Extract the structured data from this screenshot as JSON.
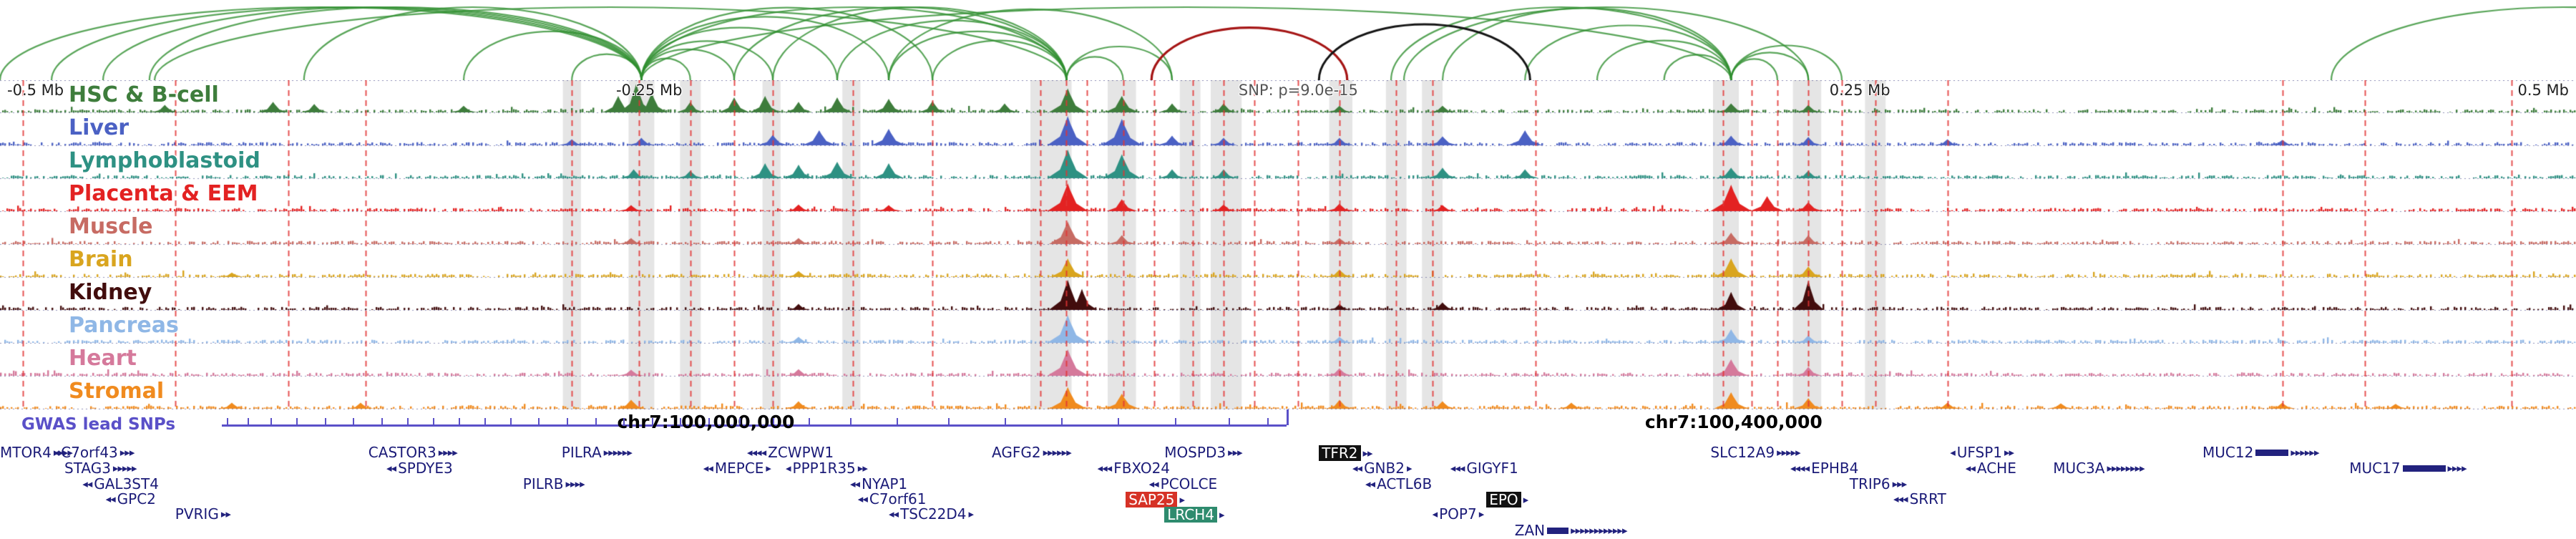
{
  "chart_data": {
    "type": "genome-browser-tracks",
    "x_axis": {
      "labels": [
        {
          "text": "-0.5 Mb",
          "x": 0.004
        },
        {
          "text": "-0.25 Mb",
          "x": 0.252
        },
        {
          "text": "SNP: p=9.0e-15",
          "x": 0.504
        },
        {
          "text": "0.25 Mb",
          "x": 0.722
        },
        {
          "text": "0.5 Mb",
          "x": 0.996
        }
      ]
    },
    "coordinates": [
      {
        "text": "chr7:100,000,000",
        "x": 0.274
      },
      {
        "text": "chr7:100,400,000",
        "x": 0.673
      }
    ],
    "gwas": {
      "label": "GWAS lead SNPs",
      "color": "#5a50c8",
      "line_start": 0.086,
      "line_end": 0.4995,
      "ticks": [
        0.088,
        0.096,
        0.105,
        0.115,
        0.126,
        0.137,
        0.148,
        0.158,
        0.168,
        0.178,
        0.188,
        0.198,
        0.209,
        0.22,
        0.231,
        0.242,
        0.253,
        0.264,
        0.275,
        0.287,
        0.3,
        0.314,
        0.33,
        0.348,
        0.368,
        0.39,
        0.412,
        0.434,
        0.456,
        0.477,
        0.492
      ]
    },
    "arcs": {
      "green": [
        [
          0.0,
          0.249
        ],
        [
          0.02,
          0.249
        ],
        [
          0.04,
          0.249
        ],
        [
          0.058,
          0.249
        ],
        [
          0.118,
          0.249
        ],
        [
          0.18,
          0.249
        ],
        [
          0.222,
          0.249
        ],
        [
          0.249,
          0.268
        ],
        [
          0.249,
          0.285
        ],
        [
          0.249,
          0.3
        ],
        [
          0.249,
          0.325
        ],
        [
          0.249,
          0.345
        ],
        [
          0.249,
          0.362
        ],
        [
          0.249,
          0.414
        ],
        [
          0.06,
          0.414
        ],
        [
          0.285,
          0.414
        ],
        [
          0.3,
          0.414
        ],
        [
          0.325,
          0.414
        ],
        [
          0.345,
          0.414
        ],
        [
          0.362,
          0.414
        ],
        [
          0.414,
          0.436
        ],
        [
          0.414,
          0.455
        ],
        [
          0.345,
          0.455
        ],
        [
          0.249,
          0.672
        ],
        [
          0.54,
          0.672
        ],
        [
          0.56,
          0.672
        ],
        [
          0.592,
          0.672
        ],
        [
          0.62,
          0.672
        ],
        [
          0.646,
          0.672
        ],
        [
          0.672,
          0.69
        ],
        [
          0.672,
          0.702
        ],
        [
          0.672,
          0.715
        ],
        [
          0.545,
          0.702
        ],
        [
          0.905,
          1.085
        ]
      ],
      "red": [
        [
          0.447,
          0.523
        ]
      ],
      "black": [
        [
          0.512,
          0.594
        ]
      ]
    },
    "snp_lines": [
      0.009,
      0.068,
      0.112,
      0.142,
      0.222,
      0.248,
      0.268,
      0.285,
      0.3,
      0.331,
      0.362,
      0.404,
      0.414,
      0.422,
      0.436,
      0.448,
      0.463,
      0.475,
      0.487,
      0.504,
      0.52,
      0.542,
      0.556,
      0.596,
      0.669,
      0.68,
      0.69,
      0.702,
      0.715,
      0.728,
      0.756,
      0.886,
      0.918,
      0.975
    ],
    "bands": [
      [
        0.2185,
        0.007
      ],
      [
        0.244,
        0.01
      ],
      [
        0.264,
        0.008
      ],
      [
        0.296,
        0.007
      ],
      [
        0.327,
        0.007
      ],
      [
        0.4,
        0.016
      ],
      [
        0.43,
        0.011
      ],
      [
        0.458,
        0.008
      ],
      [
        0.47,
        0.012
      ],
      [
        0.516,
        0.009
      ],
      [
        0.538,
        0.008
      ],
      [
        0.552,
        0.008
      ],
      [
        0.665,
        0.01
      ],
      [
        0.696,
        0.011
      ],
      [
        0.724,
        0.008
      ]
    ],
    "tracks": [
      {
        "name": "HSC & B-cell",
        "color": "#3e7d3c",
        "peaks": [
          [
            0.064,
            0.25,
            8
          ],
          [
            0.106,
            0.35,
            9
          ],
          [
            0.122,
            0.28,
            8
          ],
          [
            0.18,
            0.22,
            8
          ],
          [
            0.24,
            0.55,
            9
          ],
          [
            0.247,
            0.95,
            10
          ],
          [
            0.253,
            0.65,
            9
          ],
          [
            0.268,
            0.35,
            8
          ],
          [
            0.285,
            0.5,
            9
          ],
          [
            0.297,
            0.55,
            9
          ],
          [
            0.31,
            0.35,
            8
          ],
          [
            0.325,
            0.5,
            9
          ],
          [
            0.345,
            0.45,
            9
          ],
          [
            0.362,
            0.38,
            8
          ],
          [
            0.39,
            0.3,
            8
          ],
          [
            0.4145,
            0.8,
            11
          ],
          [
            0.4355,
            0.55,
            10
          ],
          [
            0.455,
            0.3,
            8
          ],
          [
            0.475,
            0.3,
            8
          ],
          [
            0.52,
            0.22,
            8
          ],
          [
            0.56,
            0.22,
            8
          ],
          [
            0.672,
            0.3,
            9
          ],
          [
            0.702,
            0.25,
            8
          ]
        ]
      },
      {
        "name": "Liver",
        "color": "#4b61c4",
        "peaks": [
          [
            0.222,
            0.2,
            8
          ],
          [
            0.249,
            0.25,
            8
          ],
          [
            0.3,
            0.35,
            9
          ],
          [
            0.318,
            0.5,
            10
          ],
          [
            0.345,
            0.55,
            10
          ],
          [
            0.4145,
            0.97,
            12
          ],
          [
            0.4355,
            0.88,
            12
          ],
          [
            0.455,
            0.32,
            9
          ],
          [
            0.475,
            0.25,
            8
          ],
          [
            0.52,
            0.25,
            8
          ],
          [
            0.56,
            0.3,
            9
          ],
          [
            0.592,
            0.5,
            10
          ],
          [
            0.672,
            0.32,
            9
          ],
          [
            0.702,
            0.28,
            8
          ],
          [
            0.756,
            0.2,
            8
          ],
          [
            0.886,
            0.18,
            8
          ]
        ]
      },
      {
        "name": "Lymphoblastoid",
        "color": "#2e9183",
        "peaks": [
          [
            0.246,
            0.3,
            8
          ],
          [
            0.268,
            0.25,
            8
          ],
          [
            0.297,
            0.5,
            9
          ],
          [
            0.31,
            0.45,
            9
          ],
          [
            0.325,
            0.55,
            10
          ],
          [
            0.345,
            0.5,
            9
          ],
          [
            0.4145,
            0.95,
            12
          ],
          [
            0.4355,
            0.8,
            11
          ],
          [
            0.455,
            0.3,
            8
          ],
          [
            0.475,
            0.3,
            8
          ],
          [
            0.56,
            0.35,
            9
          ],
          [
            0.592,
            0.3,
            8
          ],
          [
            0.672,
            0.35,
            9
          ],
          [
            0.702,
            0.25,
            8
          ]
        ]
      },
      {
        "name": "Placenta & EEM",
        "color": "#e32222",
        "peaks": [
          [
            0.245,
            0.2,
            8
          ],
          [
            0.31,
            0.22,
            8
          ],
          [
            0.345,
            0.2,
            8
          ],
          [
            0.4145,
            0.92,
            12
          ],
          [
            0.4355,
            0.4,
            9
          ],
          [
            0.475,
            0.22,
            8
          ],
          [
            0.52,
            0.25,
            8
          ],
          [
            0.56,
            0.2,
            8
          ],
          [
            0.672,
            0.88,
            12
          ],
          [
            0.686,
            0.5,
            10
          ],
          [
            0.702,
            0.3,
            9
          ]
        ]
      },
      {
        "name": "Muscle",
        "color": "#c76b63",
        "peaks": [
          [
            0.245,
            0.2,
            8
          ],
          [
            0.31,
            0.2,
            8
          ],
          [
            0.4145,
            0.75,
            11
          ],
          [
            0.4355,
            0.3,
            8
          ],
          [
            0.52,
            0.2,
            8
          ],
          [
            0.672,
            0.38,
            9
          ],
          [
            0.702,
            0.3,
            8
          ]
        ]
      },
      {
        "name": "Brain",
        "color": "#d9a51f",
        "peaks": [
          [
            0.09,
            0.15,
            7
          ],
          [
            0.31,
            0.2,
            8
          ],
          [
            0.4145,
            0.62,
            10
          ],
          [
            0.52,
            0.25,
            8
          ],
          [
            0.672,
            0.62,
            10
          ],
          [
            0.702,
            0.35,
            9
          ]
        ]
      },
      {
        "name": "Kidney",
        "color": "#420d0d",
        "peaks": [
          [
            0.31,
            0.2,
            7
          ],
          [
            0.4145,
            1.0,
            11
          ],
          [
            0.42,
            0.7,
            9
          ],
          [
            0.52,
            0.2,
            7
          ],
          [
            0.56,
            0.25,
            8
          ],
          [
            0.672,
            0.6,
            9
          ],
          [
            0.702,
            0.98,
            9
          ]
        ]
      },
      {
        "name": "Pancreas",
        "color": "#8fb7e6",
        "peaks": [
          [
            0.31,
            0.2,
            8
          ],
          [
            0.4145,
            0.92,
            12
          ],
          [
            0.52,
            0.2,
            8
          ],
          [
            0.672,
            0.45,
            9
          ],
          [
            0.702,
            0.25,
            8
          ]
        ]
      },
      {
        "name": "Heart",
        "color": "#d5799b",
        "peaks": [
          [
            0.245,
            0.2,
            8
          ],
          [
            0.31,
            0.22,
            8
          ],
          [
            0.4145,
            0.88,
            12
          ],
          [
            0.52,
            0.25,
            8
          ],
          [
            0.672,
            0.55,
            10
          ],
          [
            0.702,
            0.3,
            8
          ]
        ]
      },
      {
        "name": "Stromal",
        "color": "#f08b1f",
        "peaks": [
          [
            0.09,
            0.2,
            8
          ],
          [
            0.14,
            0.2,
            8
          ],
          [
            0.245,
            0.3,
            9
          ],
          [
            0.31,
            0.25,
            8
          ],
          [
            0.4145,
            0.72,
            11
          ],
          [
            0.4355,
            0.5,
            10
          ],
          [
            0.52,
            0.3,
            8
          ],
          [
            0.56,
            0.25,
            8
          ],
          [
            0.61,
            0.2,
            8
          ],
          [
            0.672,
            0.55,
            10
          ],
          [
            0.702,
            0.35,
            9
          ],
          [
            0.756,
            0.2,
            8
          ],
          [
            0.8,
            0.18,
            8
          ],
          [
            0.886,
            0.2,
            8
          ],
          [
            0.93,
            0.16,
            8
          ]
        ]
      }
    ],
    "genes": [
      {
        "n": "MTOR4",
        "x": 0.0,
        "r": 0,
        "post": 4
      },
      {
        "n": "C7orf43",
        "x": 0.021,
        "r": 0,
        "pre": 1,
        "post": 3
      },
      {
        "n": "CASTOR3",
        "x": 0.143,
        "r": 0,
        "post": 4
      },
      {
        "n": "PILRA",
        "x": 0.218,
        "r": 0,
        "post": 6
      },
      {
        "n": "ZCWPW1",
        "x": 0.29,
        "r": 0,
        "pre": 4
      },
      {
        "n": "AGFG2",
        "x": 0.385,
        "r": 0,
        "post": 6
      },
      {
        "n": "MOSPD3",
        "x": 0.452,
        "r": 0,
        "post": 3
      },
      {
        "n": "TFR2",
        "x": 0.512,
        "r": 0,
        "b": "black",
        "post": 2
      },
      {
        "n": "SLC12A9",
        "x": 0.664,
        "r": 0,
        "post": 5
      },
      {
        "n": "UFSP1",
        "x": 0.757,
        "r": 0,
        "pre": 1,
        "post": 2
      },
      {
        "n": "MUC12",
        "x": 0.855,
        "r": 0,
        "post": 6,
        "exon": 46
      },
      {
        "n": "STAG3",
        "x": 0.025,
        "r": 1,
        "post": 5
      },
      {
        "n": "SPDYE3",
        "x": 0.15,
        "r": 1,
        "pre": 2
      },
      {
        "n": "MEPCE",
        "x": 0.273,
        "r": 1,
        "pre": 2,
        "post": 1
      },
      {
        "n": "PPP1R35",
        "x": 0.305,
        "r": 1,
        "pre": 1,
        "post": 2
      },
      {
        "n": "FBXO24",
        "x": 0.426,
        "r": 1,
        "pre": 3
      },
      {
        "n": "GNB2",
        "x": 0.525,
        "r": 1,
        "pre": 2,
        "post": 1
      },
      {
        "n": "GIGYF1",
        "x": 0.563,
        "r": 1,
        "pre": 3
      },
      {
        "n": "EPHB4",
        "x": 0.695,
        "r": 1,
        "pre": 4
      },
      {
        "n": "ACHE",
        "x": 0.763,
        "r": 1,
        "pre": 2
      },
      {
        "n": "MUC3A",
        "x": 0.797,
        "r": 1,
        "post": 8
      },
      {
        "n": "MUC17",
        "x": 0.912,
        "r": 1,
        "post": 4,
        "exon": 60
      },
      {
        "n": "GAL3ST4",
        "x": 0.032,
        "r": 2,
        "pre": 2
      },
      {
        "n": "PILRB",
        "x": 0.203,
        "r": 2,
        "post": 4
      },
      {
        "n": "NYAP1",
        "x": 0.33,
        "r": 2,
        "pre": 2
      },
      {
        "n": "PCOLCE",
        "x": 0.446,
        "r": 2,
        "pre": 2
      },
      {
        "n": "ACTL6B",
        "x": 0.53,
        "r": 2,
        "pre": 2
      },
      {
        "n": "TRIP6",
        "x": 0.718,
        "r": 2,
        "post": 3
      },
      {
        "n": "GPC2",
        "x": 0.041,
        "r": 3,
        "pre": 2
      },
      {
        "n": "C7orf61",
        "x": 0.333,
        "r": 3,
        "pre": 2
      },
      {
        "n": "SAP25",
        "x": 0.437,
        "r": 3,
        "b": "red",
        "post": 1
      },
      {
        "n": "EPO",
        "x": 0.577,
        "r": 3,
        "b": "black",
        "post": 1
      },
      {
        "n": "SRRT",
        "x": 0.735,
        "r": 3,
        "pre": 3
      },
      {
        "n": "PVRIG",
        "x": 0.068,
        "r": 4,
        "post": 2
      },
      {
        "n": "TSC22D4",
        "x": 0.345,
        "r": 4,
        "pre": 2,
        "post": 1
      },
      {
        "n": "LRCH4",
        "x": 0.452,
        "r": 4,
        "b": "teal",
        "post": 1
      },
      {
        "n": "POP7",
        "x": 0.556,
        "r": 4,
        "pre": 1,
        "post": 1
      },
      {
        "n": "ZAN",
        "x": 0.588,
        "r": 5,
        "post": 12,
        "exon": 30
      }
    ]
  }
}
